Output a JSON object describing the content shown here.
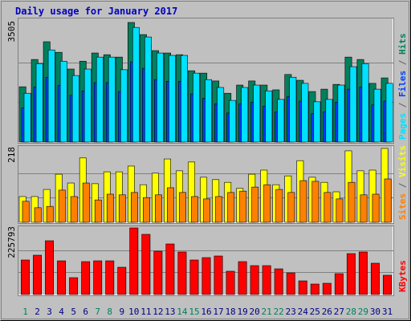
{
  "title": "Daily usage for January 2017",
  "legend_separator": "/",
  "chart_data": [
    {
      "type": "bar",
      "series": [
        {
          "name": "Hits",
          "color": "#00805c",
          "values": [
            1620,
            2420,
            2940,
            2630,
            2140,
            2370,
            2610,
            2560,
            2490,
            3505,
            3150,
            2680,
            2610,
            2560,
            2090,
            2020,
            1790,
            1430,
            1670,
            1790,
            1670,
            1530,
            1980,
            1810,
            1480,
            1550,
            1690,
            2490,
            2420,
            1720,
            1880
          ]
        },
        {
          "name": "Files",
          "color": "#0040ff",
          "values": [
            1000,
            1610,
            1890,
            1660,
            1370,
            1500,
            1740,
            1740,
            1480,
            2350,
            2160,
            1830,
            1780,
            1780,
            1410,
            1280,
            1120,
            850,
            1120,
            1170,
            1050,
            880,
            1330,
            1200,
            830,
            880,
            1170,
            1550,
            1610,
            1090,
            1200
          ]
        },
        {
          "name": "Pages",
          "color": "#00e0ff",
          "values": [
            1430,
            2300,
            2700,
            2370,
            1950,
            2140,
            2490,
            2490,
            2120,
            3360,
            3080,
            2610,
            2540,
            2540,
            2020,
            1830,
            1600,
            1220,
            1600,
            1670,
            1500,
            1250,
            1900,
            1720,
            1180,
            1250,
            1670,
            2210,
            2300,
            1550,
            1720
          ]
        }
      ],
      "ylim": [
        0,
        3505
      ],
      "yticks": [
        3505
      ],
      "grid": true
    },
    {
      "type": "bar",
      "series": [
        {
          "name": "Visits",
          "color": "#ffff00",
          "values": [
            76,
            76,
            97,
            142,
            116,
            190,
            114,
            149,
            149,
            166,
            111,
            145,
            187,
            152,
            178,
            133,
            126,
            118,
            100,
            142,
            154,
            111,
            137,
            182,
            133,
            118,
            90,
            211,
            152,
            154,
            218
          ]
        },
        {
          "name": "Sites",
          "color": "#ff8000",
          "values": [
            62,
            43,
            47,
            95,
            76,
            116,
            66,
            83,
            81,
            88,
            73,
            81,
            102,
            88,
            76,
            69,
            76,
            88,
            92,
            104,
            111,
            97,
            88,
            123,
            121,
            88,
            69,
            118,
            81,
            83,
            128
          ]
        }
      ],
      "ylim": [
        0,
        218
      ],
      "yticks": [
        218
      ],
      "grid": true
    },
    {
      "type": "bar",
      "series": [
        {
          "name": "KBytes",
          "color": "#ff0000",
          "values": [
            117000,
            133300,
            182300,
            114200,
            57100,
            111500,
            114200,
            114200,
            92500,
            225793,
            204000,
            146900,
            171400,
            144200,
            117000,
            125100,
            130600,
            78900,
            111500,
            97900,
            97900,
            87000,
            73400,
            46200,
            35400,
            38100,
            70700,
            138700,
            144200,
            106100,
            65300
          ]
        }
      ],
      "categories": [
        "1",
        "2",
        "3",
        "4",
        "5",
        "6",
        "7",
        "8",
        "9",
        "10",
        "11",
        "12",
        "13",
        "14",
        "15",
        "16",
        "17",
        "18",
        "19",
        "20",
        "21",
        "22",
        "23",
        "24",
        "25",
        "26",
        "27",
        "28",
        "29",
        "30",
        "31"
      ],
      "category_colors": [
        "#00805c",
        "#000080",
        "#000080",
        "#000080",
        "#000080",
        "#000080",
        "#00805c",
        "#00805c",
        "#000080",
        "#000080",
        "#000080",
        "#000080",
        "#000080",
        "#00805c",
        "#00805c",
        "#000080",
        "#000080",
        "#000080",
        "#000080",
        "#000080",
        "#00805c",
        "#00805c",
        "#000080",
        "#000080",
        "#000080",
        "#000080",
        "#000080",
        "#00805c",
        "#00805c",
        "#000080",
        "#000080"
      ],
      "ylim": [
        0,
        225793
      ],
      "yticks": [
        225793
      ],
      "grid": true
    }
  ]
}
